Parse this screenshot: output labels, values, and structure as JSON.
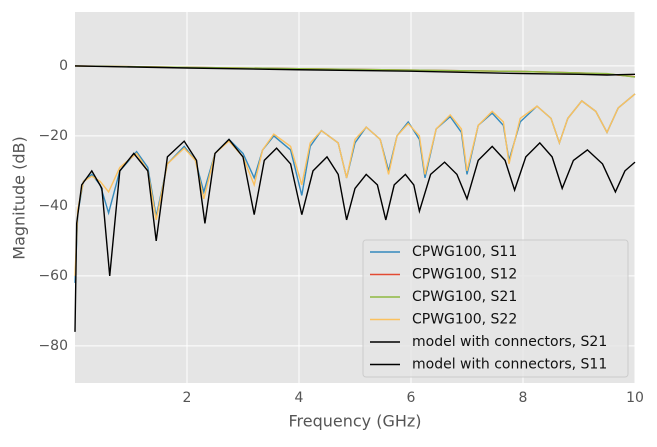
{
  "chart_data": {
    "type": "line",
    "xlabel": "Frequency (GHz)",
    "ylabel": "Magnitude (dB)",
    "xlim": [
      0,
      10
    ],
    "ylim": [
      -90.6,
      15.4
    ],
    "xticks": [
      2,
      4,
      6,
      8,
      10
    ],
    "yticks": [
      0,
      {
        "value": -20,
        "label": "−20"
      },
      {
        "value": -40,
        "label": "−40"
      },
      {
        "value": -60,
        "label": "−60"
      },
      {
        "value": -80,
        "label": "−80"
      }
    ],
    "grid": true,
    "legend": "lower right",
    "series": [
      {
        "name": "CPWG100, S11",
        "color": "#348abd",
        "x": [
          0,
          0.05,
          0.15,
          0.3,
          0.45,
          0.6,
          0.8,
          1.1,
          1.3,
          1.45,
          1.65,
          1.95,
          2.15,
          2.3,
          2.5,
          2.75,
          3.0,
          3.2,
          3.35,
          3.55,
          3.85,
          4.05,
          4.2,
          4.4,
          4.7,
          4.85,
          5.0,
          5.2,
          5.45,
          5.6,
          5.75,
          5.95,
          6.15,
          6.25,
          6.45,
          6.7,
          6.9,
          7.0,
          7.2,
          7.45,
          7.65,
          7.75,
          7.95,
          8.25,
          8.5,
          8.65,
          8.8,
          9.05,
          9.3,
          9.5,
          9.7,
          10
        ],
        "values": [
          -62,
          -42,
          -33,
          -31,
          -34,
          -42,
          -30,
          -24.5,
          -29,
          -43,
          -28,
          -23,
          -27,
          -36,
          -25,
          -21,
          -25,
          -32,
          -24,
          -20,
          -24,
          -37,
          -23,
          -18.5,
          -22,
          -32,
          -22,
          -17.5,
          -21,
          -30,
          -20,
          -16,
          -21,
          -32,
          -18,
          -14.5,
          -19,
          -31,
          -17,
          -13.5,
          -17,
          -27,
          -16,
          -11.5,
          -15,
          -22,
          -15,
          -10,
          -13,
          -19,
          -12,
          -8
        ]
      },
      {
        "name": "CPWG100, S12",
        "color": "#e24a33",
        "x": [
          0,
          2,
          4,
          6,
          8,
          9,
          9.5,
          10
        ],
        "values": [
          0,
          -0.4,
          -0.8,
          -1.2,
          -1.6,
          -2,
          -2.3,
          -3.1
        ]
      },
      {
        "name": "CPWG100, S21",
        "color": "#8eba42",
        "x": [
          0,
          2,
          4,
          6,
          8,
          9,
          9.5,
          10
        ],
        "values": [
          0,
          -0.4,
          -0.8,
          -1.2,
          -1.6,
          -2,
          -2.2,
          -3.2
        ]
      },
      {
        "name": "CPWG100, S22",
        "color": "#fbc15e",
        "x": [
          0,
          0.05,
          0.15,
          0.3,
          0.45,
          0.6,
          0.8,
          1.1,
          1.3,
          1.45,
          1.65,
          1.95,
          2.15,
          2.3,
          2.5,
          2.75,
          3.0,
          3.2,
          3.35,
          3.55,
          3.85,
          4.05,
          4.2,
          4.4,
          4.7,
          4.85,
          5.0,
          5.2,
          5.45,
          5.6,
          5.75,
          5.95,
          6.15,
          6.25,
          6.45,
          6.7,
          6.9,
          7.0,
          7.2,
          7.45,
          7.65,
          7.75,
          7.95,
          8.25,
          8.5,
          8.65,
          8.8,
          9.05,
          9.3,
          9.5,
          9.7,
          10
        ],
        "values": [
          -60,
          -41,
          -33,
          -31.5,
          -33,
          -36,
          -29,
          -25,
          -30,
          -44,
          -28,
          -23.5,
          -27,
          -38,
          -25,
          -21.5,
          -26,
          -34,
          -24,
          -19.5,
          -23,
          -34,
          -22,
          -18.5,
          -22,
          -32,
          -21,
          -17.5,
          -21,
          -31,
          -20,
          -16.5,
          -20,
          -31,
          -18,
          -14,
          -18,
          -30,
          -17,
          -13,
          -16,
          -28,
          -15,
          -11.5,
          -15,
          -22,
          -15,
          -10,
          -13,
          -19,
          -12,
          -8
        ]
      },
      {
        "name": "model with connectors, S21",
        "color": "#000000",
        "x": [
          0,
          2,
          4,
          6,
          8,
          9,
          9.5,
          10
        ],
        "values": [
          0,
          -0.6,
          -1.1,
          -1.5,
          -2.2,
          -2.4,
          -2.6,
          -2.4
        ]
      },
      {
        "name": "model with connectors, S11",
        "color": "#000000",
        "x": [
          0,
          0.03,
          0.12,
          0.3,
          0.48,
          0.62,
          0.8,
          1.05,
          1.3,
          1.45,
          1.65,
          1.95,
          2.17,
          2.32,
          2.5,
          2.75,
          3.0,
          3.2,
          3.38,
          3.6,
          3.85,
          4.05,
          4.25,
          4.5,
          4.7,
          4.85,
          5.0,
          5.2,
          5.4,
          5.55,
          5.7,
          5.9,
          6.05,
          6.15,
          6.35,
          6.6,
          6.82,
          7.0,
          7.2,
          7.45,
          7.68,
          7.85,
          8.05,
          8.3,
          8.52,
          8.7,
          8.9,
          9.15,
          9.42,
          9.65,
          9.82,
          10
        ],
        "values": [
          -76,
          -45,
          -34,
          -30,
          -35,
          -60,
          -30,
          -25,
          -30,
          -50,
          -26,
          -21.5,
          -27,
          -45,
          -25,
          -21,
          -26,
          -42.5,
          -27,
          -23.5,
          -28,
          -42.5,
          -30,
          -26,
          -31,
          -44,
          -35,
          -31,
          -34,
          -44,
          -34,
          -31,
          -34,
          -41.5,
          -31,
          -27.5,
          -31,
          -38,
          -27,
          -23,
          -27,
          -35.5,
          -26,
          -22,
          -26,
          -35,
          -27,
          -24,
          -28,
          -36,
          -30,
          -27.5
        ]
      }
    ]
  }
}
